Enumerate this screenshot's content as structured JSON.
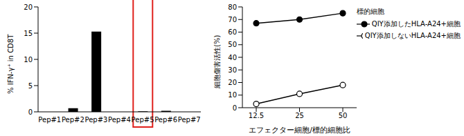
{
  "chart_data": [
    {
      "type": "bar",
      "y_label": "% IFN-γ⁺ in CD8T",
      "categories": [
        "Pep#1",
        "Pep#2",
        "Pep#3",
        "Pep#4",
        "Pep#5",
        "Pep#6",
        "Pep#7"
      ],
      "values": [
        0,
        0.7,
        15.3,
        0,
        0.1,
        0.2,
        0
      ],
      "color": "#000000",
      "ylim": [
        0,
        20
      ],
      "yticks": [
        0,
        5,
        10,
        15,
        20
      ],
      "grid": false
    },
    {
      "type": "line",
      "y_label": "細胞傷害活性(%)",
      "x_label": "エフェクター細胞/標的細胞比",
      "legend_title": "標的細胞",
      "legend": "right",
      "categories": [
        "12.5",
        "25",
        "50"
      ],
      "series": [
        {
          "name": "QIY添加したHLA-A24+細胞",
          "color": "#000000",
          "marker": "filled_circle",
          "values": [
            67,
            70,
            75
          ]
        },
        {
          "name": "QIY添加しないHLA-A24+細胞",
          "color": "#000000",
          "marker": "open_circle",
          "values": [
            3,
            11,
            18
          ]
        }
      ],
      "ylim": [
        0,
        80
      ],
      "yticks": [
        0,
        10,
        20,
        30,
        40,
        50,
        60,
        70,
        80
      ],
      "grid": false
    }
  ]
}
